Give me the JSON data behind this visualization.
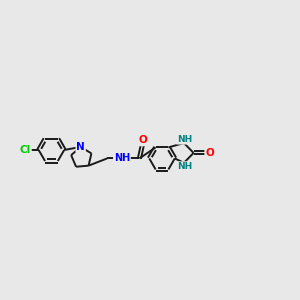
{
  "background_color": "#e8e8e8",
  "bond_color": "#1a1a1a",
  "N_color": "#0000ff",
  "O_color": "#ff0000",
  "Cl_color": "#00cc00",
  "NH_color": "#008080",
  "line_width": 1.4,
  "dbo": 0.055,
  "figsize": [
    3.0,
    3.0
  ],
  "dpi": 100,
  "xlim": [
    0.0,
    10.5
  ],
  "ylim": [
    1.5,
    6.5
  ]
}
